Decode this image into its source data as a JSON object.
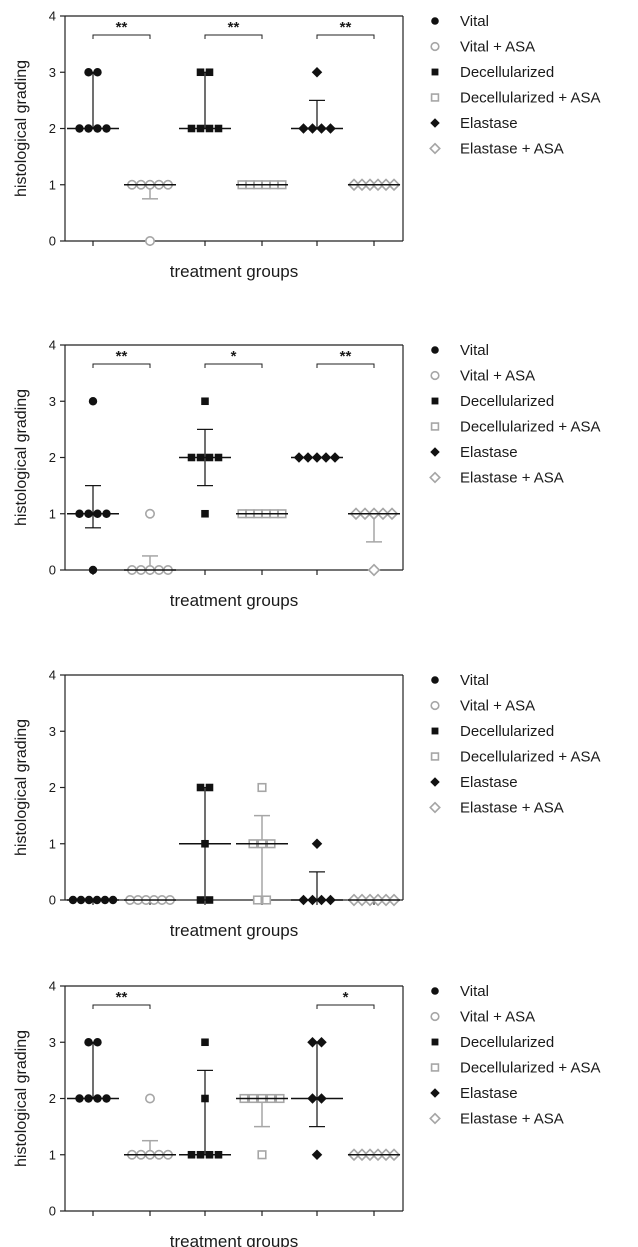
{
  "legend": [
    {
      "label": "Vital",
      "shape": "circle",
      "style": "filled"
    },
    {
      "label": "Vital + ASA",
      "shape": "circle",
      "style": "open"
    },
    {
      "label": "Decellularized",
      "shape": "square",
      "style": "filled"
    },
    {
      "label": "Decellularized + ASA",
      "shape": "square",
      "style": "open"
    },
    {
      "label": "Elastase",
      "shape": "diamond",
      "style": "filled"
    },
    {
      "label": "Elastase + ASA",
      "shape": "diamond",
      "style": "open"
    }
  ],
  "colors": {
    "filled": "#111111",
    "open": "#a6a6a6",
    "axis": "#222222"
  },
  "chart_data": [
    {
      "type": "scatter",
      "xlabel": "treatment groups",
      "ylabel": "histological grading",
      "ylim": [
        0,
        4
      ],
      "yticks": [
        "0",
        "1",
        "2",
        "3",
        "4"
      ],
      "legend_position": "right",
      "groups": [
        {
          "name": "Vital",
          "values": [
            3,
            3,
            2,
            2,
            2,
            2
          ],
          "median": 2,
          "whisker": [
            2,
            3
          ]
        },
        {
          "name": "Vital + ASA",
          "values": [
            1,
            1,
            1,
            1,
            1,
            0
          ],
          "median": 1,
          "whisker": [
            0.75,
            1
          ]
        },
        {
          "name": "Decellularized",
          "values": [
            3,
            3,
            2,
            2,
            2,
            2
          ],
          "median": 2,
          "whisker": [
            2,
            3
          ]
        },
        {
          "name": "Decellularized + ASA",
          "values": [
            1,
            1,
            1,
            1,
            1,
            1
          ],
          "median": 1,
          "whisker": [
            1,
            1
          ]
        },
        {
          "name": "Elastase",
          "values": [
            3,
            2,
            2,
            2,
            2
          ],
          "median": 2,
          "whisker": [
            2,
            2.5
          ]
        },
        {
          "name": "Elastase + ASA",
          "values": [
            1,
            1,
            1,
            1,
            1,
            1
          ],
          "median": 1,
          "whisker": [
            1,
            1
          ]
        }
      ],
      "significance": [
        {
          "from": 0,
          "to": 1,
          "label": "**"
        },
        {
          "from": 2,
          "to": 3,
          "label": "**"
        },
        {
          "from": 4,
          "to": 5,
          "label": "**"
        }
      ]
    },
    {
      "type": "scatter",
      "xlabel": "treatment groups",
      "ylabel": "histological grading",
      "ylim": [
        0,
        4
      ],
      "yticks": [
        "0",
        "1",
        "2",
        "3",
        "4"
      ],
      "legend_position": "right",
      "groups": [
        {
          "name": "Vital",
          "values": [
            3,
            1,
            1,
            1,
            1,
            0
          ],
          "median": 1,
          "whisker": [
            0.75,
            1.5
          ]
        },
        {
          "name": "Vital + ASA",
          "values": [
            1,
            0,
            0,
            0,
            0,
            0
          ],
          "median": 0,
          "whisker": [
            0,
            0.25
          ]
        },
        {
          "name": "Decellularized",
          "values": [
            3,
            2,
            2,
            2,
            2,
            1
          ],
          "median": 2,
          "whisker": [
            1.5,
            2.5
          ]
        },
        {
          "name": "Decellularized + ASA",
          "values": [
            1,
            1,
            1,
            1,
            1,
            1
          ],
          "median": 1,
          "whisker": [
            1,
            1
          ]
        },
        {
          "name": "Elastase",
          "values": [
            2,
            2,
            2,
            2,
            2
          ],
          "median": 2,
          "whisker": [
            2,
            2
          ]
        },
        {
          "name": "Elastase + ASA",
          "values": [
            1,
            1,
            1,
            1,
            1,
            0
          ],
          "median": 1,
          "whisker": [
            0.5,
            1
          ]
        }
      ],
      "significance": [
        {
          "from": 0,
          "to": 1,
          "label": "**"
        },
        {
          "from": 2,
          "to": 3,
          "label": "*"
        },
        {
          "from": 4,
          "to": 5,
          "label": "**"
        }
      ]
    },
    {
      "type": "scatter",
      "xlabel": "treatment groups",
      "ylabel": "histological grading",
      "ylim": [
        0,
        4
      ],
      "yticks": [
        "0",
        "1",
        "2",
        "3",
        "4"
      ],
      "legend_position": "right",
      "groups": [
        {
          "name": "Vital",
          "values": [
            0,
            0,
            0,
            0,
            0,
            0
          ],
          "median": 0,
          "whisker": [
            0,
            0
          ]
        },
        {
          "name": "Vital + ASA",
          "values": [
            0,
            0,
            0,
            0,
            0,
            0
          ],
          "median": 0,
          "whisker": [
            0,
            0
          ]
        },
        {
          "name": "Decellularized",
          "values": [
            2,
            2,
            1,
            0,
            0
          ],
          "median": 1,
          "whisker": [
            0,
            2
          ]
        },
        {
          "name": "Decellularized + ASA",
          "values": [
            2,
            1,
            1,
            1,
            0,
            0
          ],
          "median": 1,
          "whisker": [
            0,
            1.5
          ]
        },
        {
          "name": "Elastase",
          "values": [
            1,
            0,
            0,
            0,
            0
          ],
          "median": 0,
          "whisker": [
            0,
            0.5
          ]
        },
        {
          "name": "Elastase + ASA",
          "values": [
            0,
            0,
            0,
            0,
            0,
            0
          ],
          "median": 0,
          "whisker": [
            0,
            0
          ]
        }
      ],
      "significance": []
    },
    {
      "type": "scatter",
      "xlabel": "treatment groups",
      "ylabel": "histological grading",
      "ylim": [
        0,
        4
      ],
      "yticks": [
        "0",
        "1",
        "2",
        "3",
        "4"
      ],
      "legend_position": "right",
      "groups": [
        {
          "name": "Vital",
          "values": [
            3,
            3,
            2,
            2,
            2,
            2
          ],
          "median": 2,
          "whisker": [
            2,
            3
          ]
        },
        {
          "name": "Vital + ASA",
          "values": [
            2,
            1,
            1,
            1,
            1,
            1
          ],
          "median": 1,
          "whisker": [
            1,
            1.25
          ]
        },
        {
          "name": "Decellularized",
          "values": [
            3,
            2,
            1,
            1,
            1,
            1
          ],
          "median": 1,
          "whisker": [
            1,
            2.5
          ]
        },
        {
          "name": "Decellularized + ASA",
          "values": [
            2,
            2,
            2,
            2,
            2,
            1
          ],
          "median": 2,
          "whisker": [
            1.5,
            2
          ]
        },
        {
          "name": "Elastase",
          "values": [
            3,
            3,
            2,
            2,
            1
          ],
          "median": 2,
          "whisker": [
            1.5,
            3
          ]
        },
        {
          "name": "Elastase + ASA",
          "values": [
            1,
            1,
            1,
            1,
            1,
            1
          ],
          "median": 1,
          "whisker": [
            1,
            1
          ]
        }
      ],
      "significance": [
        {
          "from": 0,
          "to": 1,
          "label": "**"
        },
        {
          "from": 4,
          "to": 5,
          "label": "*"
        }
      ]
    }
  ]
}
